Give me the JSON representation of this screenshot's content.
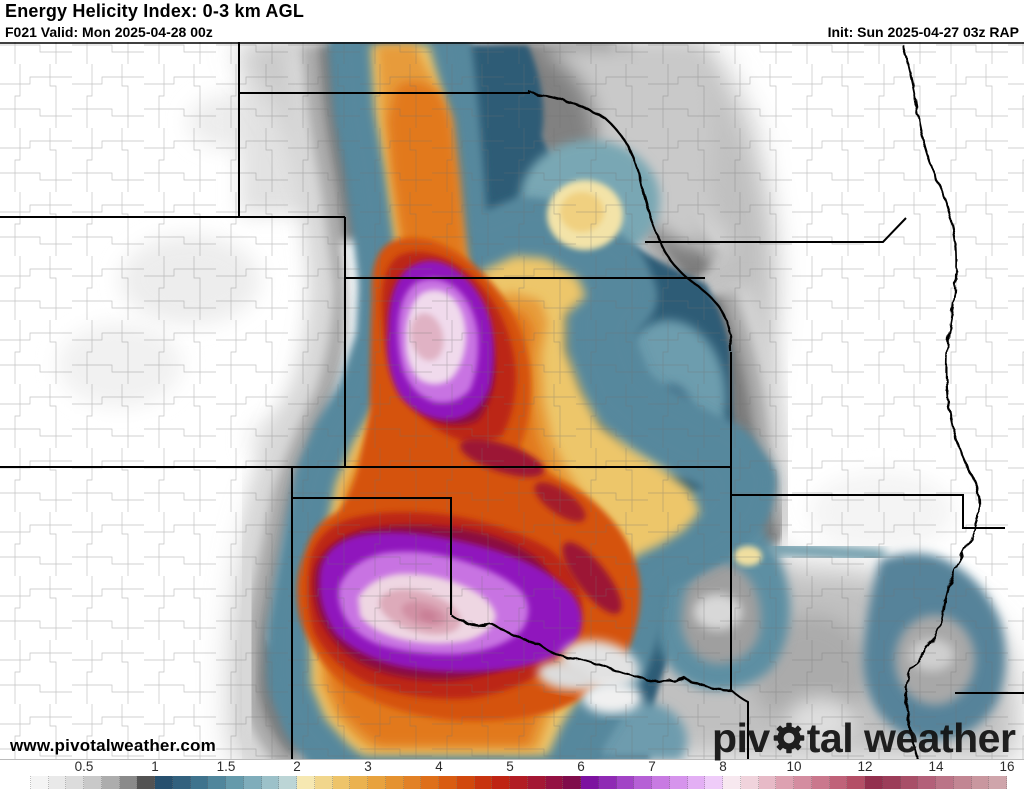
{
  "header": {
    "title": "Energy Helicity Index: 0-3 km AGL",
    "forecast_line": "F021 Valid: Mon 2025-04-28 00z",
    "init_line": "Init: Sun 2025-04-27 03z RAP"
  },
  "watermark": {
    "url_text": "www.pivotalweather.com",
    "logo_prefix": "piv",
    "logo_suffix": "tal weather"
  },
  "colorbar": {
    "tick_labels": [
      "0.5",
      "1",
      "1.5",
      "2",
      "3",
      "4",
      "5",
      "6",
      "7",
      "8",
      "10",
      "12",
      "14",
      "16"
    ],
    "segment_colors": [
      "#ffffff",
      "#f4f4f4",
      "#e9e9e9",
      "#dcdcdc",
      "#c9c9c9",
      "#adadad",
      "#8a8a8a",
      "#535353",
      "#27506e",
      "#32617e",
      "#3f738d",
      "#50869c",
      "#659aab",
      "#7fadbb",
      "#9cc1c9",
      "#bcd5d6",
      "#f6e8b2",
      "#f1d68c",
      "#eec46a",
      "#ebb250",
      "#e8a23e",
      "#e59230",
      "#e28126",
      "#de6f1a",
      "#d95c11",
      "#d1480d",
      "#c8340f",
      "#bf2413",
      "#b21c24",
      "#a41734",
      "#941142",
      "#800c4b",
      "#7d12a0",
      "#8f2ab4",
      "#a244c6",
      "#b660d6",
      "#c87ae2",
      "#d694ec",
      "#e3aff4",
      "#efccf9",
      "#f7e8ef",
      "#f0d3dc",
      "#e7bac7",
      "#dda1b1",
      "#d48da0",
      "#ca788d",
      "#c06279",
      "#b44e66",
      "#93304e",
      "#9c3d59",
      "#a84f68",
      "#b36079",
      "#bb7487",
      "#c28693",
      "#c9979f",
      "#cfa5ab"
    ]
  }
}
